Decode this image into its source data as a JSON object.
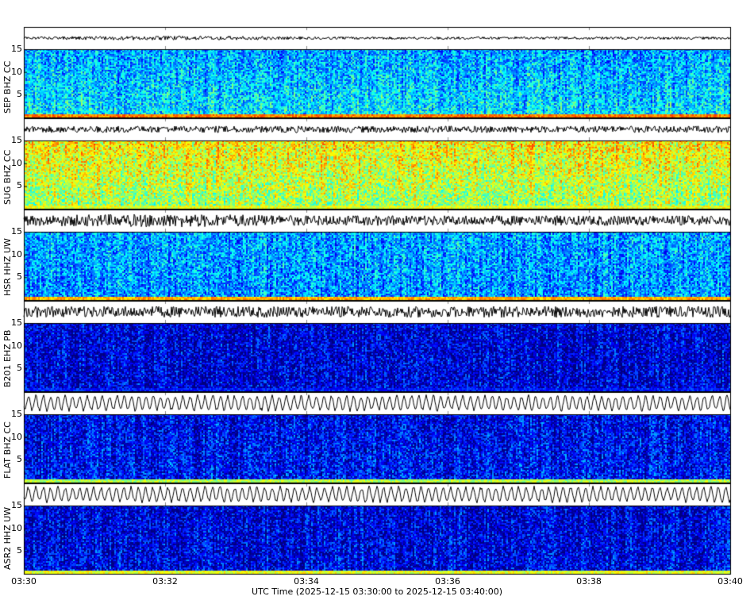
{
  "chart_data": {
    "type": "heatmap",
    "subtype": "spectrogram-with-waveform",
    "xlabel": "UTC Time (2025-12-15 03:30:00 to 2025-12-15 03:40:00)",
    "x_range": [
      "03:30",
      "03:40"
    ],
    "x_ticks": [
      "03:30",
      "03:32",
      "03:34",
      "03:36",
      "03:38",
      "03:40"
    ],
    "ylim": [
      0,
      15
    ],
    "y_ticks": [
      "5",
      "10",
      "15"
    ],
    "colormap": "jet",
    "stations": [
      {
        "label": "SEP BHZ CC",
        "mean_level": 0.36,
        "top_boost": -0.08,
        "bottom_strip": 0.75,
        "wave_amp": 0.12,
        "wave_type": "noise",
        "wave_burst": 0.55
      },
      {
        "label": "SUG BHZ CC",
        "mean_level": 0.52,
        "top_boost": 0.12,
        "bottom_strip": 0.6,
        "wave_amp": 0.3,
        "wave_type": "noise",
        "wave_burst": 0
      },
      {
        "label": "HSR HHZ UW",
        "mean_level": 0.27,
        "top_boost": 0.02,
        "bottom_strip": 0.7,
        "wave_amp": 0.45,
        "wave_type": "noise",
        "wave_burst": 0.3
      },
      {
        "label": "B201 EHZ PB",
        "mean_level": 0.09,
        "top_boost": 0,
        "bottom_strip": 0.15,
        "wave_amp": 0.5,
        "wave_type": "noise",
        "wave_burst": 0
      },
      {
        "label": "FLAT BHZ CC",
        "mean_level": 0.14,
        "top_boost": -0.03,
        "bottom_strip": 0.55,
        "wave_amp": 0.7,
        "wave_type": "oscillation",
        "wave_burst": 0
      },
      {
        "label": "ASR2 HHZ UW",
        "mean_level": 0.11,
        "top_boost": -0.02,
        "bottom_strip": 0.6,
        "wave_amp": 0.7,
        "wave_type": "oscillation",
        "wave_burst": 0
      }
    ]
  }
}
